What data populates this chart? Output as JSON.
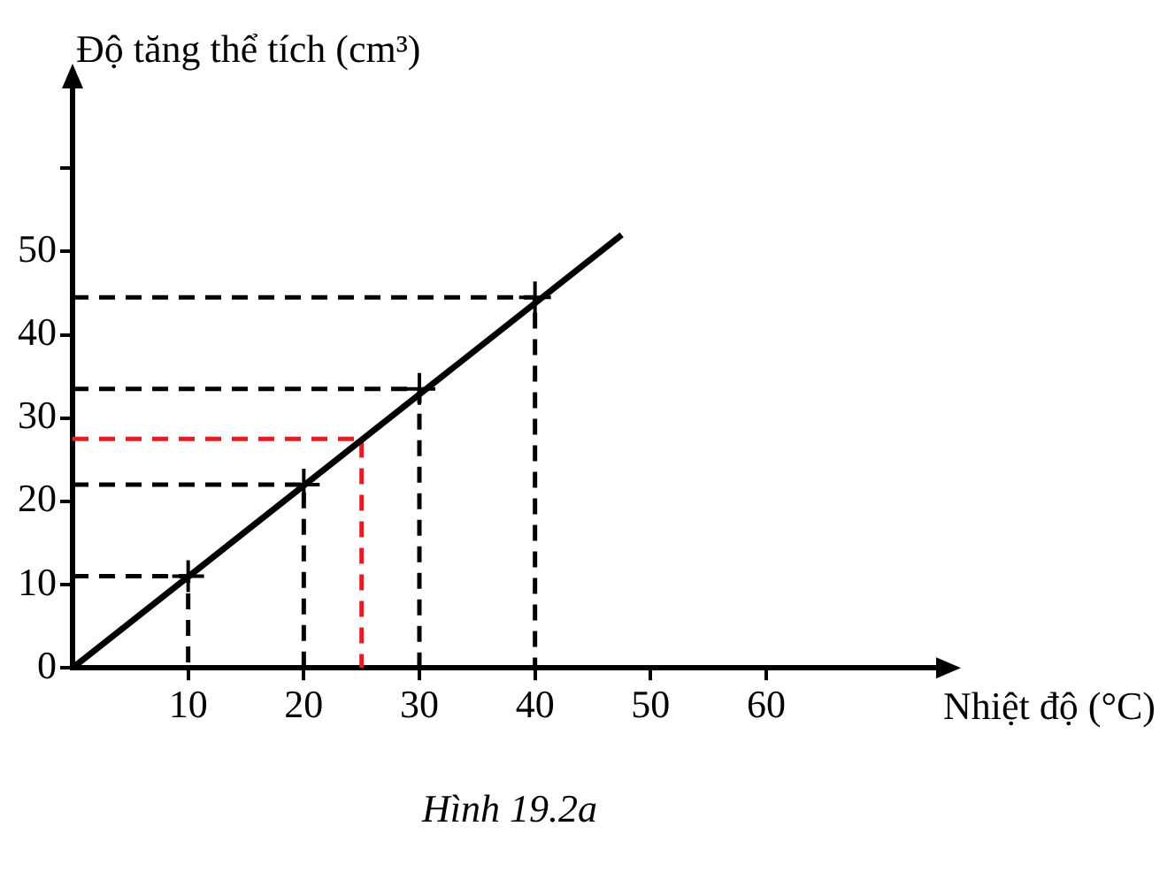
{
  "chart_data": {
    "type": "line",
    "xlabel": "Nhiệt độ (°C)",
    "ylabel": "Độ tăng thể tích (cm³)",
    "annotations": [
      "Hình 19.2a"
    ],
    "xlim": [
      0,
      75
    ],
    "xticks": [
      10,
      20,
      30,
      40,
      50,
      60
    ],
    "ylim": [
      0,
      70
    ],
    "yticks": [
      0,
      10,
      20,
      30,
      40,
      50,
      {
        "value": 60,
        "label": null
      }
    ],
    "grid": false,
    "legend": false,
    "series": [
      {
        "type": "line",
        "color": "#000000",
        "marker": "none",
        "line_style": "solid",
        "x": [
          0,
          47.5
        ],
        "values": [
          0,
          52
        ]
      },
      {
        "type": "scatter",
        "color": "#000000",
        "marker": "cross",
        "x": [
          10,
          20,
          30,
          40
        ],
        "values": [
          11,
          22,
          33.5,
          44.5
        ]
      },
      {
        "type": "line",
        "color": "#000000",
        "marker": "none",
        "line_style": "dashed",
        "x": [
          0,
          10,
          10
        ],
        "values": [
          11,
          11,
          0
        ]
      },
      {
        "type": "line",
        "color": "#000000",
        "marker": "none",
        "line_style": "dashed",
        "x": [
          0,
          20,
          20
        ],
        "values": [
          22,
          22,
          0
        ]
      },
      {
        "type": "line",
        "color": "#e02020",
        "marker": "none",
        "line_style": "dashed",
        "x": [
          0,
          25,
          25
        ],
        "values": [
          27.5,
          27.5,
          0
        ]
      },
      {
        "type": "line",
        "color": "#000000",
        "marker": "none",
        "line_style": "dashed",
        "x": [
          0,
          30,
          30
        ],
        "values": [
          33.5,
          33.5,
          0
        ]
      },
      {
        "type": "line",
        "color": "#000000",
        "marker": "none",
        "line_style": "dashed",
        "x": [
          0,
          40,
          40
        ],
        "values": [
          44.5,
          44.5,
          0
        ]
      }
    ]
  }
}
